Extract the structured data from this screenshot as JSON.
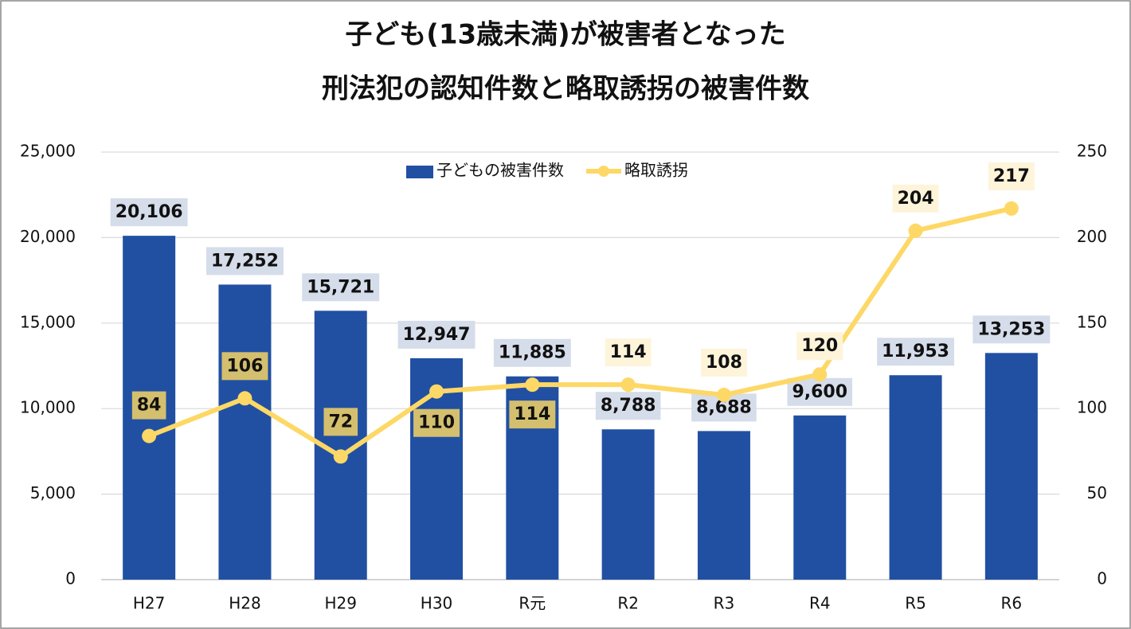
{
  "chart_data": {
    "type": "combo",
    "title": [
      "子ども(13歳未満)が被害者となった",
      "刑法犯の認知件数と略取誘拐の被害件数"
    ],
    "categories": [
      "H27",
      "H28",
      "H29",
      "H30",
      "R元",
      "R2",
      "R3",
      "R4",
      "R5",
      "R6"
    ],
    "series": [
      {
        "name": "子どもの被害件数",
        "type": "bar",
        "color": "#2150a3",
        "axis": "y",
        "values": [
          20106,
          17252,
          15721,
          12947,
          11885,
          8788,
          8688,
          9600,
          11953,
          13253
        ],
        "value_labels": [
          "20,106",
          "17,252",
          "15,721",
          "12,947",
          "11,885",
          "8,788",
          "8,688",
          "9,600",
          "11,953",
          "13,253"
        ]
      },
      {
        "name": "略取誘拐",
        "type": "line",
        "color": "#fdd866",
        "axis": "y2",
        "values": [
          84,
          106,
          72,
          110,
          114,
          114,
          108,
          120,
          204,
          217
        ]
      }
    ],
    "ylim": [
      0,
      25000
    ],
    "yticks": [
      0,
      {
        "value": 5000,
        "label": "5,000"
      },
      {
        "value": 10000,
        "label": "10,000"
      },
      {
        "value": 15000,
        "label": "15,000"
      },
      {
        "value": 20000,
        "label": "20,000"
      },
      {
        "value": 25000,
        "label": "25,000"
      }
    ],
    "y2lim": [
      0,
      250
    ],
    "y2ticks": [
      0,
      50,
      100,
      150,
      200,
      250
    ],
    "grid": true,
    "legend": "top"
  }
}
